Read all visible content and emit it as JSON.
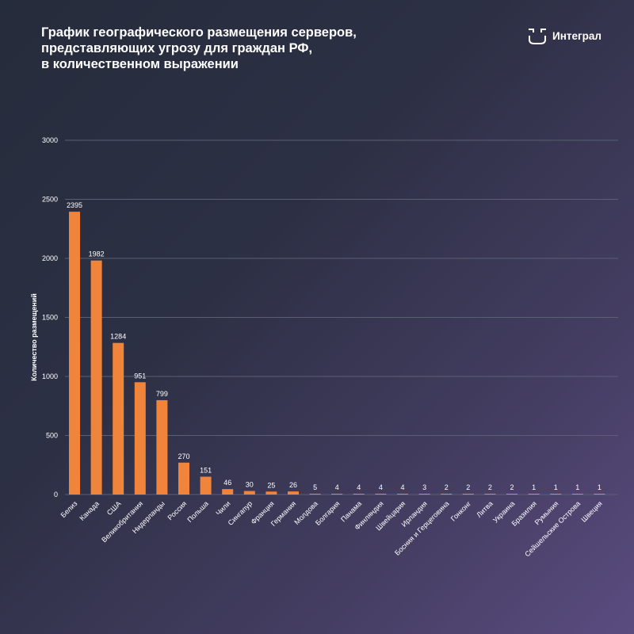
{
  "header": {
    "title_lines": [
      "График географического размещения серверов,",
      "представляющих угрозу для граждан РФ,",
      "в количественном выражении"
    ]
  },
  "brand": {
    "name": "Интеграл",
    "icon": "integral-logo-icon"
  },
  "colors": {
    "bar": "#f0843a",
    "grid": "#5a5f73",
    "text": "#ffffff"
  },
  "chart_data": {
    "type": "bar",
    "title": "График географического размещения серверов, представляющих угрозу для граждан РФ, в количественном выражении",
    "xlabel": "",
    "ylabel": "Количество размещений",
    "ylim": [
      0,
      3000
    ],
    "yticks": [
      0,
      500,
      1000,
      1500,
      2000,
      2500,
      3000
    ],
    "grid": true,
    "categories": [
      "Белиз",
      "Канада",
      "США",
      "Великобритания",
      "Нидерланды",
      "Россия",
      "Польша",
      "Чили",
      "Сингапур",
      "Франция",
      "Германия",
      "Молдова",
      "Болгария",
      "Панама",
      "Финляндия",
      "Швейцария",
      "Ирландия",
      "Босния и Герцеговина",
      "Гонконг",
      "Литва",
      "Украина",
      "Бразилия",
      "Румыния",
      "Сейшельские Острова",
      "Швеция"
    ],
    "values": [
      2395,
      1982,
      1284,
      951,
      799,
      270,
      151,
      46,
      30,
      25,
      26,
      5,
      4,
      4,
      4,
      4,
      3,
      2,
      2,
      2,
      2,
      1,
      1,
      1,
      1
    ]
  }
}
